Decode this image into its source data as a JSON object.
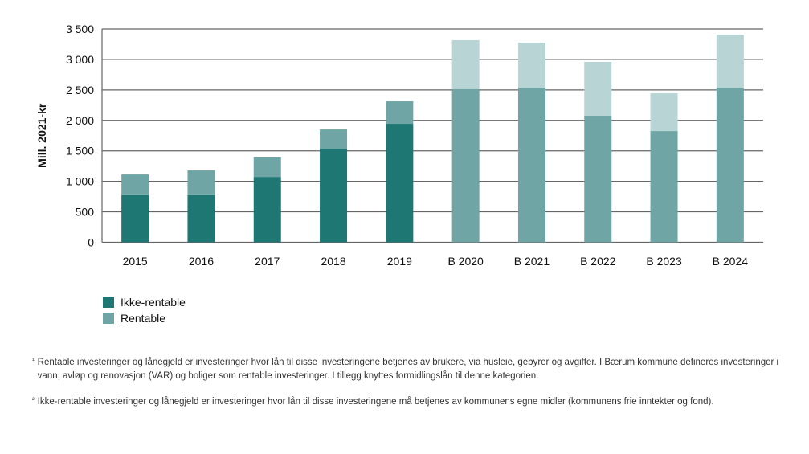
{
  "chart_data": {
    "type": "bar",
    "stacked": true,
    "ylabel": "Mill. 2021-kr",
    "ylim": [
      0,
      3500
    ],
    "yticks": [
      0,
      500,
      1000,
      1500,
      2000,
      2500,
      3000,
      3500
    ],
    "ytick_labels": [
      "0",
      "500",
      "1 000",
      "1 500",
      "2 000",
      "2 500",
      "3 000",
      "3 500"
    ],
    "grid": true,
    "legend_position": "bottom-left",
    "categories": [
      "2015",
      "2016",
      "2017",
      "2018",
      "2019",
      "B 2020",
      "B 2021",
      "B 2022",
      "B 2023",
      "B 2024"
    ],
    "series": [
      {
        "name": "Ikke-rentable",
        "values": [
          774,
          774,
          1073,
          1535,
          1944,
          2515,
          2537,
          2076,
          1825,
          2537
        ],
        "color": "#1f7774",
        "budget_color": "#6fa5a5"
      },
      {
        "name": "Rentable",
        "values": [
          339,
          405,
          321,
          316,
          369,
          801,
          739,
          884,
          620,
          871
        ],
        "color": "#6fa5a5",
        "budget_color": "#b8d4d4"
      }
    ]
  },
  "footnotes": [
    {
      "mark": "¹",
      "text": "Rentable investeringer og lånegjeld er investeringer hvor lån til disse investeringene betjenes av brukere, via husleie, gebyrer og avgifter. I Bærum kommune defineres investeringer i vann, avløp og renovasjon (VAR) og boliger som rentable investeringer. I tillegg knyttes formidlingslån til denne kategorien."
    },
    {
      "mark": "²",
      "text": "Ikke-rentable investeringer og lånegjeld er investeringer hvor lån til disse investeringene må betjenes av kommunens egne midler (kommunens frie inntekter og fond)."
    }
  ]
}
